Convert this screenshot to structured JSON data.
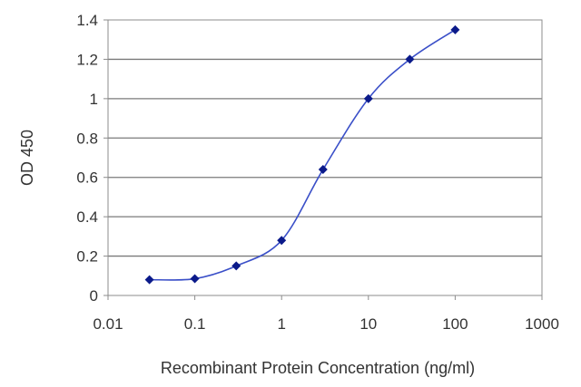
{
  "chart_data": {
    "type": "line",
    "title": "",
    "xlabel": "Recombinant Protein Concentration (ng/ml)",
    "ylabel": "OD 450",
    "x_scale": "log",
    "xlim": [
      0.01,
      1000
    ],
    "ylim": [
      0,
      1.4
    ],
    "x_ticks": [
      "0.01",
      "0.1",
      "1",
      "10",
      "100",
      "1000"
    ],
    "y_ticks": [
      "0",
      "0.2",
      "0.4",
      "0.6",
      "0.8",
      "1",
      "1.2",
      "1.4"
    ],
    "grid": "horizontal",
    "legend": "none",
    "series": [
      {
        "color": "#3a4fc8",
        "marker_color": "#0b1a8a",
        "x": [
          0.03,
          0.1,
          0.3,
          1,
          3,
          10,
          30,
          100
        ],
        "y": [
          0.08,
          0.085,
          0.15,
          0.28,
          0.64,
          1.0,
          1.2,
          1.35
        ]
      }
    ]
  }
}
